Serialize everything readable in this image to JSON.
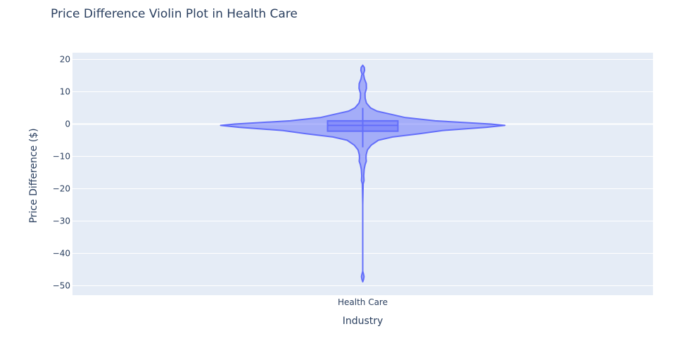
{
  "chart_data": {
    "type": "violin",
    "title": "Price Difference Violin Plot in Health Care",
    "xlabel": "Industry",
    "ylabel": "Price Difference ($)",
    "categories": [
      "Health Care"
    ],
    "ylim": [
      -53,
      23
    ],
    "yticks": [
      20,
      10,
      0,
      -10,
      -20,
      -30,
      -40,
      -50
    ],
    "ytick_labels": [
      "20",
      "10",
      "0",
      "−10",
      "−20",
      "−30",
      "−40",
      "−50"
    ],
    "grid": true,
    "colors": {
      "plot_bg": "#e5ecf6",
      "grid": "#ffffff",
      "violin_line": "#636efa",
      "violin_fill": "#636efa",
      "text": "#2a3f5f"
    },
    "violin": {
      "category": "Health Care",
      "box": {
        "q1": -2.2,
        "median": -0.4,
        "q3": 1.0,
        "whisker_low": -7.2,
        "whisker_high": 5.0
      },
      "data_range": [
        -48.8,
        18.2
      ],
      "density_profile": [
        {
          "y": 18.2,
          "w": 0.0
        },
        {
          "y": 17.5,
          "w": 0.011
        },
        {
          "y": 16.6,
          "w": 0.013
        },
        {
          "y": 15.5,
          "w": 0.005
        },
        {
          "y": 14.0,
          "w": 0.012
        },
        {
          "y": 12.5,
          "w": 0.025
        },
        {
          "y": 11.0,
          "w": 0.026
        },
        {
          "y": 9.5,
          "w": 0.016
        },
        {
          "y": 8.0,
          "w": 0.017
        },
        {
          "y": 6.5,
          "w": 0.026
        },
        {
          "y": 5.0,
          "w": 0.055
        },
        {
          "y": 4.0,
          "w": 0.1
        },
        {
          "y": 3.0,
          "w": 0.2
        },
        {
          "y": 2.0,
          "w": 0.3
        },
        {
          "y": 1.0,
          "w": 0.51
        },
        {
          "y": 0.0,
          "w": 0.9
        },
        {
          "y": -0.4,
          "w": 1.0
        },
        {
          "y": -1.0,
          "w": 0.87
        },
        {
          "y": -2.0,
          "w": 0.56
        },
        {
          "y": -3.0,
          "w": 0.4
        },
        {
          "y": -4.0,
          "w": 0.21
        },
        {
          "y": -5.0,
          "w": 0.11
        },
        {
          "y": -6.5,
          "w": 0.06
        },
        {
          "y": -8.0,
          "w": 0.033
        },
        {
          "y": -9.5,
          "w": 0.024
        },
        {
          "y": -10.5,
          "w": 0.023
        },
        {
          "y": -11.5,
          "w": 0.025
        },
        {
          "y": -12.5,
          "w": 0.017
        },
        {
          "y": -14.0,
          "w": 0.01
        },
        {
          "y": -16.0,
          "w": 0.007
        },
        {
          "y": -17.5,
          "w": 0.009
        },
        {
          "y": -18.5,
          "w": 0.003
        },
        {
          "y": -25.0,
          "w": 0.0
        },
        {
          "y": -45.5,
          "w": 0.0
        },
        {
          "y": -46.5,
          "w": 0.006
        },
        {
          "y": -47.2,
          "w": 0.009
        },
        {
          "y": -48.0,
          "w": 0.006
        },
        {
          "y": -48.8,
          "w": 0.0
        }
      ]
    }
  }
}
